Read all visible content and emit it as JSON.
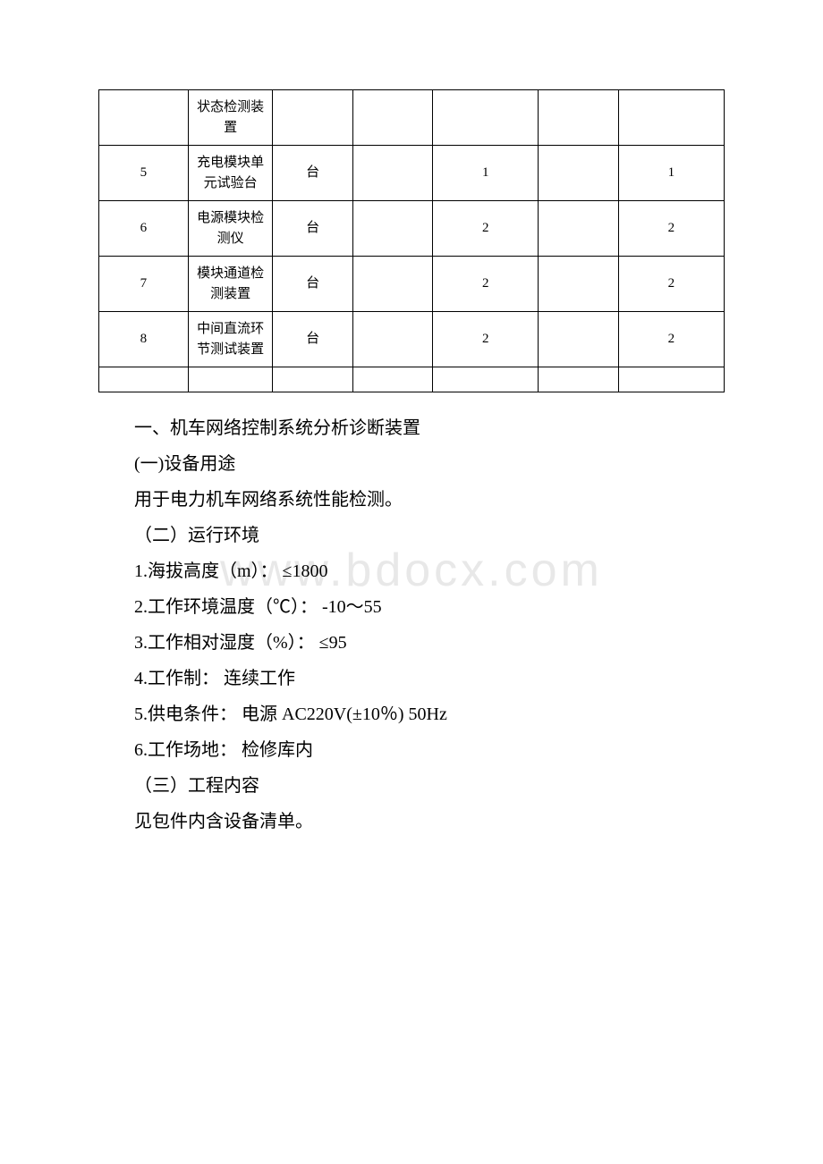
{
  "watermark": "www.bdocx.com",
  "table": {
    "rows": [
      {
        "idx": "",
        "name": "状态检测装置",
        "unit": "",
        "b1": "",
        "n1": "",
        "b2": "",
        "n2": ""
      },
      {
        "idx": "5",
        "name": "充电模块单元试验台",
        "unit": "台",
        "b1": "",
        "n1": "1",
        "b2": "",
        "n2": "1"
      },
      {
        "idx": "6",
        "name": "电源模块检测仪",
        "unit": "台",
        "b1": "",
        "n1": "2",
        "b2": "",
        "n2": "2"
      },
      {
        "idx": "7",
        "name": "模块通道检测装置",
        "unit": "台",
        "b1": "",
        "n1": "2",
        "b2": "",
        "n2": "2"
      },
      {
        "idx": "8",
        "name": "中间直流环节测试装置",
        "unit": "台",
        "b1": "",
        "n1": "2",
        "b2": "",
        "n2": "2"
      }
    ]
  },
  "body": {
    "h1": "一、机车网络控制系统分析诊断装置",
    "s1": "(一)设备用途",
    "p1": "用于电力机车网络系统性能检测。",
    "s2": "（二）运行环境",
    "li1": "1.海拔高度（m）： ≤1800",
    "li2": "2.工作环境温度（℃）： -10～55",
    "li3": "3.工作相对湿度（%）： ≤95",
    "li4": "4.工作制： 连续工作",
    "li5": "5.供电条件： 电源 AC220V(±10％) 50Hz",
    "li6": "6.工作场地： 检修库内",
    "s3": "（三）工程内容",
    "p2": "见包件内含设备清单。"
  }
}
